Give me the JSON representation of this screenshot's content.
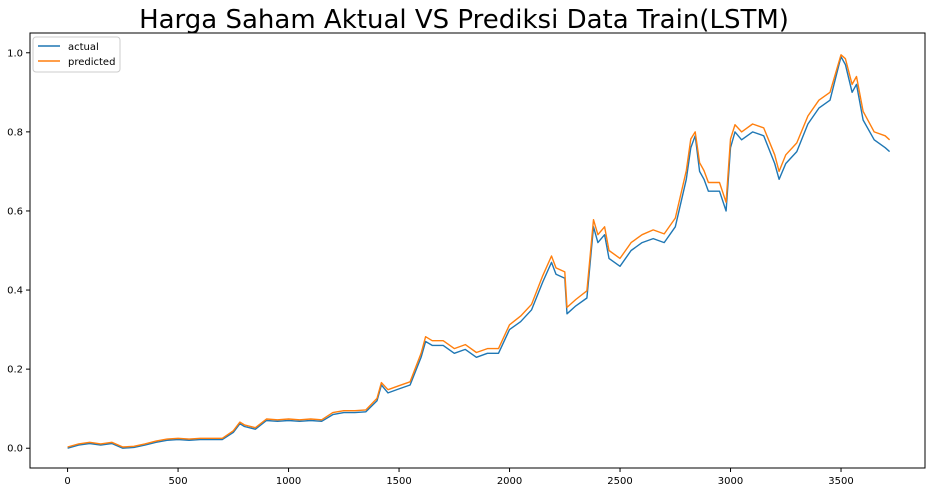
{
  "chart_data": {
    "type": "line",
    "title": "Harga Saham Aktual VS Prediksi Data Train(LSTM)",
    "xlabel": "",
    "ylabel": "",
    "xlim": [
      -170,
      3880
    ],
    "ylim": [
      -0.05,
      1.05
    ],
    "x_ticks": [
      0,
      500,
      1000,
      1500,
      2000,
      2500,
      3000,
      3500
    ],
    "x_tick_labels": [
      "0",
      "500",
      "1000",
      "1500",
      "2000",
      "2500",
      "3000",
      "3500"
    ],
    "y_ticks": [
      0.0,
      0.2,
      0.4,
      0.6,
      0.8,
      1.0
    ],
    "y_tick_labels": [
      "0.0",
      "0.2",
      "0.4",
      "0.6",
      "0.8",
      "1.0"
    ],
    "grid": false,
    "legend_position": "top-left",
    "x": [
      0,
      50,
      100,
      150,
      200,
      250,
      300,
      350,
      400,
      450,
      500,
      550,
      600,
      650,
      700,
      750,
      780,
      800,
      850,
      900,
      950,
      1000,
      1050,
      1100,
      1150,
      1200,
      1250,
      1300,
      1350,
      1400,
      1420,
      1450,
      1500,
      1550,
      1600,
      1620,
      1650,
      1700,
      1750,
      1800,
      1850,
      1900,
      1950,
      2000,
      2050,
      2100,
      2150,
      2190,
      2210,
      2250,
      2260,
      2300,
      2350,
      2380,
      2400,
      2430,
      2450,
      2500,
      2550,
      2600,
      2650,
      2700,
      2750,
      2800,
      2820,
      2840,
      2860,
      2880,
      2900,
      2950,
      2980,
      3000,
      3020,
      3050,
      3100,
      3150,
      3200,
      3220,
      3250,
      3300,
      3350,
      3400,
      3450,
      3500,
      3520,
      3550,
      3570,
      3600,
      3650,
      3700,
      3720
    ],
    "series": [
      {
        "name": "actual",
        "color": "#1f77b4",
        "values": [
          0.0,
          0.008,
          0.012,
          0.008,
          0.012,
          0.0,
          0.002,
          0.008,
          0.015,
          0.02,
          0.022,
          0.02,
          0.022,
          0.022,
          0.022,
          0.04,
          0.062,
          0.055,
          0.048,
          0.07,
          0.068,
          0.07,
          0.068,
          0.07,
          0.068,
          0.085,
          0.09,
          0.09,
          0.092,
          0.12,
          0.16,
          0.14,
          0.15,
          0.16,
          0.23,
          0.27,
          0.26,
          0.26,
          0.24,
          0.25,
          0.23,
          0.24,
          0.24,
          0.3,
          0.32,
          0.35,
          0.42,
          0.47,
          0.44,
          0.43,
          0.34,
          0.36,
          0.38,
          0.56,
          0.52,
          0.54,
          0.48,
          0.46,
          0.5,
          0.52,
          0.53,
          0.52,
          0.56,
          0.68,
          0.76,
          0.79,
          0.7,
          0.68,
          0.65,
          0.65,
          0.6,
          0.76,
          0.8,
          0.78,
          0.8,
          0.79,
          0.72,
          0.68,
          0.72,
          0.75,
          0.82,
          0.86,
          0.88,
          0.99,
          0.97,
          0.9,
          0.92,
          0.83,
          0.78,
          0.76,
          0.75
        ]
      },
      {
        "name": "predicted",
        "color": "#ff7f0e",
        "values": [
          0.003,
          0.011,
          0.015,
          0.011,
          0.015,
          0.003,
          0.005,
          0.011,
          0.018,
          0.023,
          0.025,
          0.023,
          0.025,
          0.025,
          0.025,
          0.044,
          0.066,
          0.059,
          0.052,
          0.074,
          0.072,
          0.074,
          0.072,
          0.074,
          0.072,
          0.09,
          0.095,
          0.095,
          0.097,
          0.126,
          0.166,
          0.148,
          0.158,
          0.168,
          0.24,
          0.282,
          0.272,
          0.272,
          0.252,
          0.262,
          0.242,
          0.252,
          0.252,
          0.312,
          0.334,
          0.364,
          0.436,
          0.486,
          0.456,
          0.446,
          0.356,
          0.376,
          0.398,
          0.578,
          0.54,
          0.56,
          0.5,
          0.48,
          0.52,
          0.54,
          0.552,
          0.542,
          0.582,
          0.702,
          0.782,
          0.8,
          0.722,
          0.702,
          0.672,
          0.672,
          0.622,
          0.782,
          0.818,
          0.8,
          0.82,
          0.81,
          0.742,
          0.7,
          0.742,
          0.772,
          0.84,
          0.88,
          0.9,
          0.995,
          0.985,
          0.92,
          0.94,
          0.852,
          0.8,
          0.79,
          0.78
        ]
      }
    ]
  }
}
